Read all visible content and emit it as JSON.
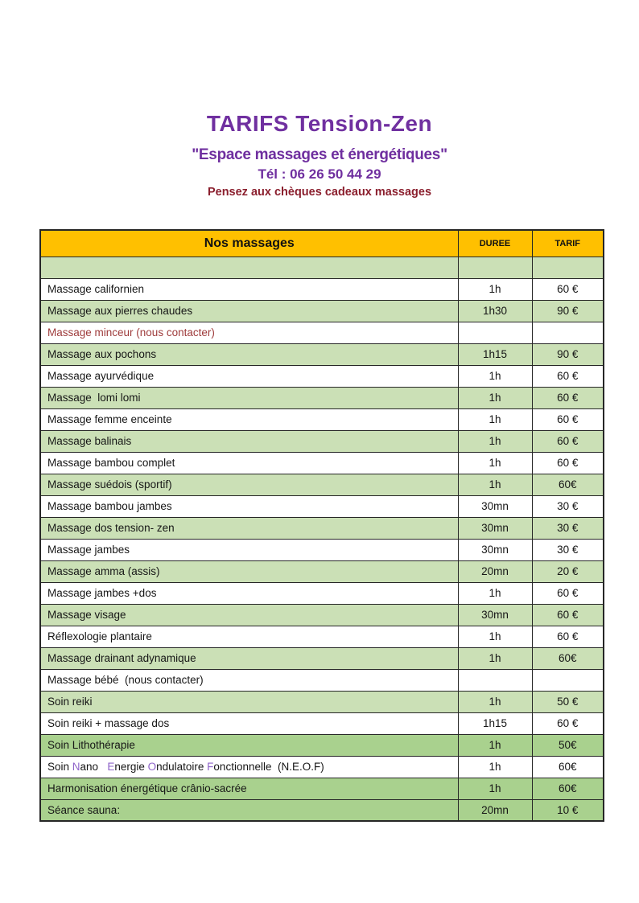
{
  "header": {
    "title": "TARIFS Tension-Zen",
    "subtitle": "\"Espace massages et énergétiques\"",
    "phone": "Tél : 06 26 50 44 29",
    "promo": "Pensez aux chèques cadeaux massages"
  },
  "colors": {
    "title_purple": "#7030a0",
    "promo_dark_red": "#8b1f2e",
    "note_red": "#9e3b3b",
    "header_orange": "#ffc000",
    "row_light_green": "#cbe0b6",
    "row_dark_green": "#a9d18e",
    "border": "#262626",
    "neof_initial_purple": "#8e63c9"
  },
  "table": {
    "headers": {
      "name": "Nos massages",
      "duration": "DUREE",
      "price": "TARIF"
    },
    "rows": [
      {
        "name": "",
        "duration": "",
        "price": "",
        "shade": "light"
      },
      {
        "name": "Massage californien",
        "duration": "1h",
        "price": "60 €",
        "shade": "white"
      },
      {
        "name": "Massage aux pierres chaudes",
        "duration": "1h30",
        "price": "90 €",
        "shade": "light"
      },
      {
        "name": "Massage minceur (nous contacter)",
        "duration": "",
        "price": "",
        "shade": "white",
        "color": "#9e3b3b"
      },
      {
        "name": "Massage aux pochons",
        "duration": "1h15",
        "price": "90 €",
        "shade": "light"
      },
      {
        "name": "Massage ayurvédique",
        "duration": "1h",
        "price": "60 €",
        "shade": "white"
      },
      {
        "name": "Massage  lomi lomi",
        "duration": "1h",
        "price": "60 €",
        "shade": "light"
      },
      {
        "name": "Massage femme enceinte",
        "duration": "1h",
        "price": "60 €",
        "shade": "white"
      },
      {
        "name": "Massage balinais",
        "duration": "1h",
        "price": "60 €",
        "shade": "light"
      },
      {
        "name": "Massage bambou complet",
        "duration": "1h",
        "price": "60 €",
        "shade": "white"
      },
      {
        "name": "Massage suédois (sportif)",
        "duration": "1h",
        "price": "60€",
        "shade": "light"
      },
      {
        "name": "Massage bambou jambes",
        "duration": "30mn",
        "price": "30 €",
        "shade": "white"
      },
      {
        "name": "Massage dos tension- zen",
        "duration": "30mn",
        "price": "30 €",
        "shade": "light"
      },
      {
        "name": "Massage jambes",
        "duration": "30mn",
        "price": "30 €",
        "shade": "white"
      },
      {
        "name": "Massage amma (assis)",
        "duration": "20mn",
        "price": "20 €",
        "shade": "light"
      },
      {
        "name": "Massage jambes +dos",
        "duration": "1h",
        "price": "60 €",
        "shade": "white"
      },
      {
        "name": "Massage visage",
        "duration": "30mn",
        "price": "60 €",
        "shade": "light"
      },
      {
        "name": "Réflexologie plantaire",
        "duration": "1h",
        "price": "60 €",
        "shade": "white"
      },
      {
        "name": "Massage drainant adynamique",
        "duration": "1h",
        "price": "60€",
        "shade": "light"
      },
      {
        "name": "Massage bébé  (nous contacter)",
        "duration": "",
        "price": "",
        "shade": "white"
      },
      {
        "name": "Soin reiki",
        "duration": "1h",
        "price": "50 €",
        "shade": "light"
      },
      {
        "name": "Soin reiki + massage dos",
        "duration": "1h15",
        "price": "60 €",
        "shade": "white"
      },
      {
        "name": "Soin Lithothérapie",
        "duration": "1h",
        "price": "50€",
        "shade": "dark"
      },
      {
        "segments": [
          {
            "text": "Soin "
          },
          {
            "text": "N",
            "color": "#8e63c9"
          },
          {
            "text": "ano   "
          },
          {
            "text": "E",
            "color": "#8e63c9"
          },
          {
            "text": "nergie "
          },
          {
            "text": "O",
            "color": "#8e63c9"
          },
          {
            "text": "ndulatoire "
          },
          {
            "text": "F",
            "color": "#8e63c9"
          },
          {
            "text": "onctionnelle  (N.E.O.F)"
          }
        ],
        "duration": "1h",
        "price": "60€",
        "shade": "white"
      },
      {
        "name": "Harmonisation énergétique crânio-sacrée",
        "duration": "1h",
        "price": "60€",
        "shade": "dark"
      },
      {
        "name": "Séance sauna:",
        "duration": "20mn",
        "price": "10 €",
        "shade": "dark"
      }
    ]
  }
}
